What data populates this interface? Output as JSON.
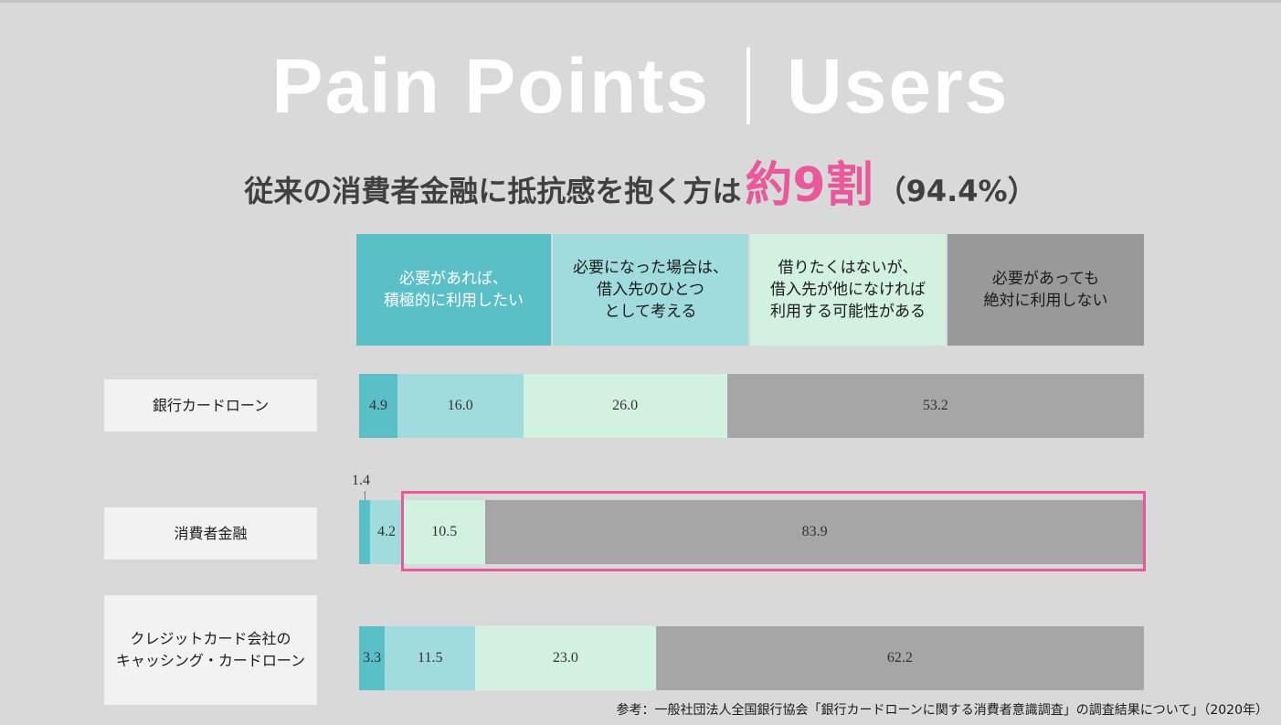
{
  "title": {
    "left": "Pain Points",
    "right": "Users"
  },
  "subtitle": {
    "prefix": "従来の消費者金融に抵抗感を抱く方は",
    "highlight": "約9割",
    "suffix": "（94.4%）"
  },
  "colors": {
    "accent": "#e8589a",
    "categories": [
      "#5bbfc7",
      "#a0dcde",
      "#d3f1e1",
      "#a6a6a6"
    ],
    "header_backgrounds": [
      "#5bbfc7",
      "#a0dcde",
      "#d3f1e1",
      "#999999"
    ]
  },
  "chart_data": {
    "type": "bar",
    "orientation": "horizontal-stacked-100",
    "categories": [
      "銀行カードローン",
      "消費者金融",
      "クレジットカード会社の\nキャッシング・カードローン"
    ],
    "series": [
      {
        "name": "必要があれば、\n積極的に利用したい",
        "values": [
          4.9,
          1.4,
          3.3
        ]
      },
      {
        "name": "必要になった場合は、\n借入先のひとつ\nとして考える",
        "values": [
          16.0,
          4.2,
          11.5
        ]
      },
      {
        "name": "借りたくはないが、\n借入先が他になければ\n利用する可能性がある",
        "values": [
          26.0,
          10.5,
          23.0
        ]
      },
      {
        "name": "必要があっても\n絶対に利用しない",
        "values": [
          53.2,
          83.9,
          62.2
        ]
      }
    ],
    "value_labels": [
      [
        "4.9",
        "16.0",
        "26.0",
        "53.2"
      ],
      [
        "1.4",
        "4.2",
        "10.5",
        "83.9"
      ],
      [
        "3.3",
        "11.5",
        "23.0",
        "62.2"
      ]
    ],
    "xlim": [
      0,
      100
    ],
    "legend": "top",
    "highlight": {
      "category": "消費者金融",
      "series_from": 2
    }
  },
  "footnote": "参考：一般社団法人全国銀行協会「銀行カードローンに関する消費者意識調査」の調査結果について」（2020年）"
}
